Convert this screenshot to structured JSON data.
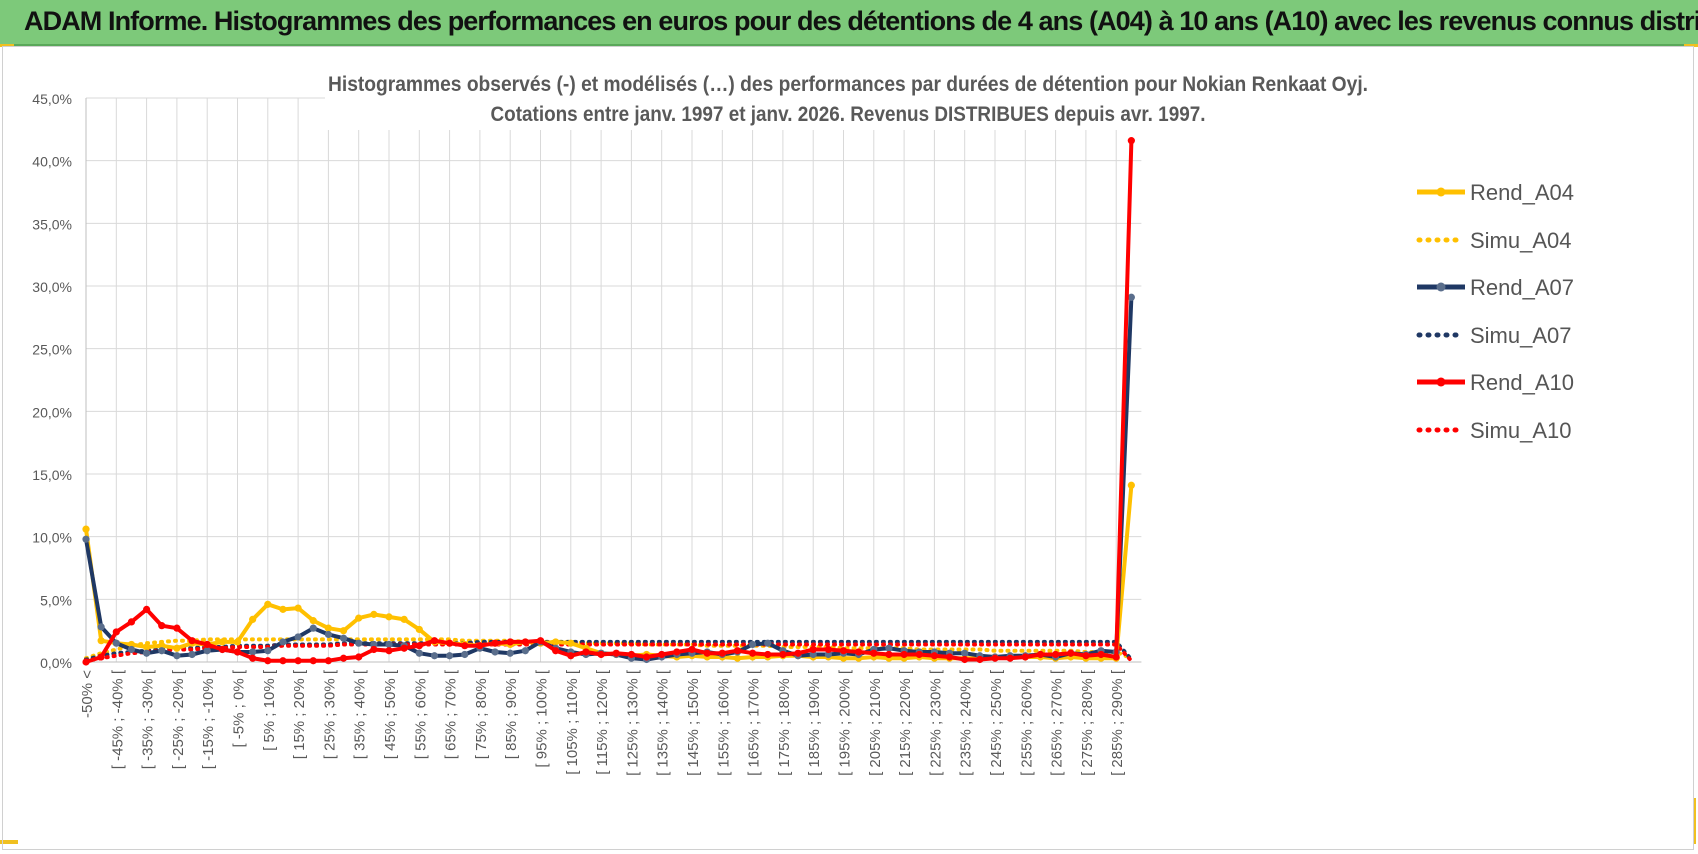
{
  "banner": {
    "title": "ADAM Informe. Histogrammes des performances en euros pour des détentions de 4 ans (A04) à 10 ans (A10) avec les revenus connus distribués"
  },
  "colors": {
    "banner_bg": "#7dc97a",
    "a04": "#ffc000",
    "a07": "#1f3864",
    "a07_marker": "#5a6e8c",
    "a10": "#ff0000",
    "grid": "#d9d9d9",
    "axis_text": "#595959"
  },
  "chart_data": {
    "type": "line",
    "title_line1": "Histogrammes observés (-) et modélisés (…) des performances par durées de détention pour Nokian Renkaat Oyj.",
    "title_line2": "Cotations entre janv. 1997 et janv. 2026. Revenus DISTRIBUES depuis avr. 1997.",
    "ylim": [
      0,
      45
    ],
    "y_ticks": [
      "0,0%",
      "5,0%",
      "10,0%",
      "15,0%",
      "20,0%",
      "25,0%",
      "30,0%",
      "35,0%",
      "40,0%",
      "45,0%"
    ],
    "x_tick_labels": [
      "-50% <",
      "[ -45% ; -40% [",
      "[ -35% ; -30% [",
      "[ -25% ; -20% [",
      "[ -15% ; -10% [",
      "[ -5% ; 0% [",
      "[ 5% ; 10% [",
      "[ 15% ; 20% [",
      "[ 25% ; 30% [",
      "[ 35% ; 40% [",
      "[ 45% ; 50% [",
      "[ 55% ; 60% [",
      "[ 65% ; 70% [",
      "[ 75% ; 80% [",
      "[ 85% ; 90% [",
      "[ 95% ; 100% [",
      "[ 105% ; 110% [",
      "[ 115% ; 120% [",
      "[ 125% ; 130% [",
      "[ 135% ; 140% [",
      "[ 145% ; 150% [",
      "[ 155% ; 160% [",
      "[ 165% ; 170% [",
      "[ 175% ; 180% [",
      "[ 185% ; 190% [",
      "[ 195% ; 200% [",
      "[ 205% ; 210% [",
      "[ 215% ; 220% [",
      "[ 225% ; 230% [",
      "[ 235% ; 240% [",
      "[ 245% ; 250% [",
      "[ 255% ; 260% [",
      "[ 265% ; 270% [",
      "[ 275% ; 280% [",
      "[ 285% ; 290% ["
    ],
    "n_categories": 70,
    "series": [
      {
        "name": "Rend_A04",
        "style": "solid",
        "color": "#ffc000",
        "marker_color": "#ffc000",
        "values": [
          10.6,
          1.7,
          1.5,
          1.4,
          1.2,
          1.3,
          1.1,
          1.5,
          1.4,
          1.6,
          1.6,
          3.4,
          4.6,
          4.2,
          4.3,
          3.3,
          2.7,
          2.5,
          3.5,
          3.8,
          3.6,
          3.4,
          2.6,
          1.6,
          1.5,
          1.4,
          1.3,
          1.5,
          1.4,
          1.6,
          1.5,
          1.6,
          1.5,
          1.1,
          0.7,
          0.6,
          0.5,
          0.6,
          0.5,
          0.4,
          0.5,
          0.4,
          0.4,
          0.3,
          0.4,
          0.4,
          0.5,
          0.5,
          0.4,
          0.4,
          0.3,
          0.3,
          0.4,
          0.3,
          0.3,
          0.4,
          0.3,
          0.3,
          0.3,
          0.3,
          0.4,
          0.4,
          0.4,
          0.4,
          0.3,
          0.4,
          0.3,
          0.3,
          0.3,
          14.1
        ]
      },
      {
        "name": "Simu_A04",
        "style": "dotted",
        "color": "#ffc000",
        "values": [
          0.3,
          0.7,
          1.0,
          1.3,
          1.5,
          1.6,
          1.7,
          1.7,
          1.8,
          1.8,
          1.8,
          1.8,
          1.8,
          1.8,
          1.8,
          1.8,
          1.8,
          1.8,
          1.8,
          1.8,
          1.8,
          1.8,
          1.8,
          1.8,
          1.8,
          1.7,
          1.7,
          1.7,
          1.7,
          1.6,
          1.6,
          1.6,
          1.6,
          1.5,
          1.5,
          1.5,
          1.5,
          1.4,
          1.4,
          1.4,
          1.4,
          1.3,
          1.3,
          1.3,
          1.3,
          1.3,
          1.2,
          1.2,
          1.2,
          1.2,
          1.1,
          1.1,
          1.1,
          1.1,
          1.1,
          1.0,
          1.0,
          1.0,
          1.0,
          1.0,
          0.9,
          0.9,
          0.9,
          0.9,
          0.9,
          0.9,
          0.8,
          0.8,
          0.8,
          0.3
        ]
      },
      {
        "name": "Rend_A07",
        "style": "solid",
        "color": "#1f3864",
        "marker_color": "#5a6e8c",
        "values": [
          9.8,
          2.8,
          1.5,
          1.0,
          0.7,
          0.9,
          0.5,
          0.6,
          0.9,
          1.0,
          0.8,
          0.8,
          0.9,
          1.6,
          2.0,
          2.7,
          2.2,
          1.9,
          1.5,
          1.4,
          1.4,
          1.3,
          0.7,
          0.5,
          0.5,
          0.6,
          1.1,
          0.8,
          0.7,
          0.9,
          1.6,
          1.1,
          0.8,
          0.6,
          0.7,
          0.6,
          0.3,
          0.2,
          0.4,
          0.6,
          0.7,
          0.8,
          0.6,
          0.8,
          1.4,
          1.5,
          0.9,
          0.5,
          0.6,
          0.6,
          0.7,
          0.6,
          1.0,
          1.1,
          0.9,
          0.8,
          0.8,
          0.7,
          0.7,
          0.5,
          0.4,
          0.5,
          0.5,
          0.6,
          0.4,
          0.7,
          0.6,
          0.9,
          0.8,
          29.1
        ]
      },
      {
        "name": "Simu_A07",
        "style": "dotted",
        "color": "#1f3864",
        "values": [
          0.2,
          0.5,
          0.7,
          0.8,
          0.9,
          1.0,
          1.1,
          1.1,
          1.2,
          1.2,
          1.3,
          1.3,
          1.3,
          1.4,
          1.4,
          1.4,
          1.4,
          1.5,
          1.5,
          1.5,
          1.5,
          1.5,
          1.5,
          1.5,
          1.5,
          1.5,
          1.6,
          1.6,
          1.6,
          1.6,
          1.6,
          1.6,
          1.6,
          1.6,
          1.6,
          1.6,
          1.6,
          1.6,
          1.6,
          1.6,
          1.6,
          1.6,
          1.6,
          1.6,
          1.6,
          1.6,
          1.6,
          1.6,
          1.6,
          1.6,
          1.6,
          1.6,
          1.6,
          1.6,
          1.6,
          1.6,
          1.6,
          1.6,
          1.6,
          1.6,
          1.6,
          1.6,
          1.6,
          1.6,
          1.6,
          1.6,
          1.6,
          1.6,
          1.6,
          0.2
        ]
      },
      {
        "name": "Rend_A10",
        "style": "solid",
        "color": "#ff0000",
        "marker_color": "#ff0000",
        "values": [
          0.0,
          0.4,
          2.4,
          3.2,
          4.2,
          2.9,
          2.7,
          1.7,
          1.4,
          1.0,
          0.8,
          0.3,
          0.1,
          0.1,
          0.1,
          0.1,
          0.1,
          0.3,
          0.4,
          1.0,
          0.9,
          1.1,
          1.3,
          1.7,
          1.5,
          1.3,
          1.3,
          1.5,
          1.6,
          1.6,
          1.7,
          0.9,
          0.5,
          0.8,
          0.6,
          0.7,
          0.6,
          0.4,
          0.6,
          0.8,
          1.0,
          0.7,
          0.7,
          0.9,
          0.7,
          0.6,
          0.6,
          0.7,
          1.0,
          1.0,
          0.9,
          0.8,
          0.7,
          0.6,
          0.6,
          0.6,
          0.5,
          0.4,
          0.2,
          0.2,
          0.3,
          0.3,
          0.4,
          0.6,
          0.6,
          0.7,
          0.5,
          0.6,
          0.4,
          41.6
        ]
      },
      {
        "name": "Simu_A10",
        "style": "dotted",
        "color": "#ff0000",
        "values": [
          0.1,
          0.3,
          0.5,
          0.7,
          0.8,
          0.9,
          1.0,
          1.0,
          1.1,
          1.1,
          1.2,
          1.2,
          1.2,
          1.3,
          1.3,
          1.3,
          1.3,
          1.4,
          1.4,
          1.4,
          1.4,
          1.4,
          1.4,
          1.4,
          1.4,
          1.4,
          1.4,
          1.4,
          1.4,
          1.4,
          1.4,
          1.4,
          1.4,
          1.4,
          1.4,
          1.4,
          1.4,
          1.4,
          1.4,
          1.4,
          1.4,
          1.4,
          1.4,
          1.4,
          1.4,
          1.4,
          1.4,
          1.4,
          1.4,
          1.4,
          1.4,
          1.4,
          1.4,
          1.4,
          1.4,
          1.4,
          1.4,
          1.4,
          1.4,
          1.4,
          1.4,
          1.4,
          1.4,
          1.4,
          1.4,
          1.4,
          1.4,
          1.4,
          1.4,
          0.1
        ]
      }
    ],
    "legend": [
      "Rend_A04",
      "Simu_A04",
      "Rend_A07",
      "Simu_A07",
      "Rend_A10",
      "Simu_A10"
    ],
    "legend_position": "right"
  }
}
